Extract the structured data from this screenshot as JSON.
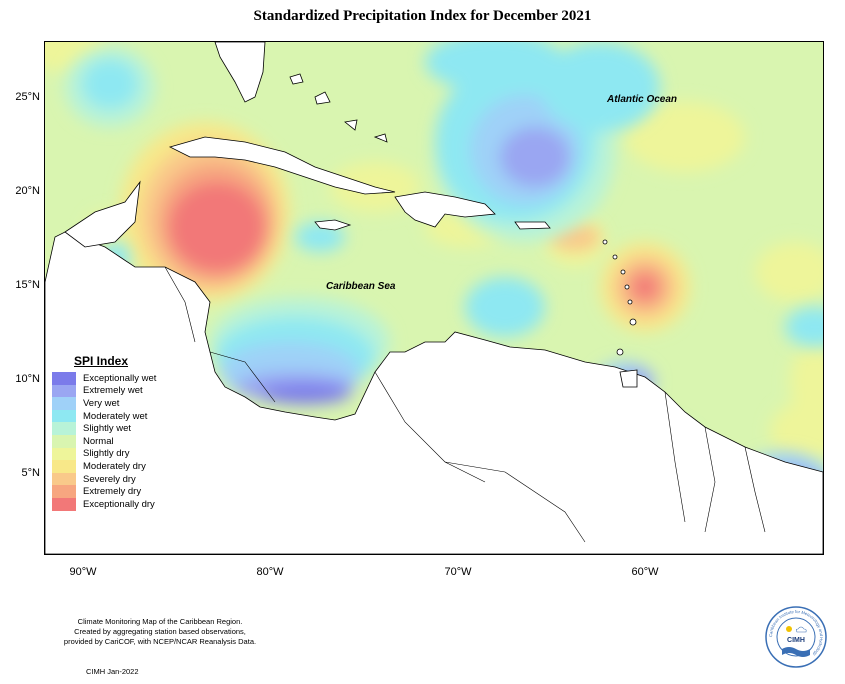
{
  "title": "Standardized Precipitation Index for December 2021",
  "y_ticks": [
    "25°N",
    "20°N",
    "15°N",
    "10°N",
    "5°N"
  ],
  "x_ticks": [
    "90°W",
    "80°W",
    "70°W",
    "60°W"
  ],
  "labels": {
    "atlantic": "Atlantic Ocean",
    "caribbean": "Caribbean Sea"
  },
  "legend": {
    "title": "SPI Index",
    "items": [
      {
        "label": "Exceptionally wet",
        "color": "#7b7bea"
      },
      {
        "label": "Extremely wet",
        "color": "#9aa6f2"
      },
      {
        "label": "Very wet",
        "color": "#9fd1f8"
      },
      {
        "label": "Moderately wet",
        "color": "#8ee8f2"
      },
      {
        "label": "Slightly wet",
        "color": "#b8f3d8"
      },
      {
        "label": "Normal",
        "color": "#d9f5b0"
      },
      {
        "label": "Slightly dry",
        "color": "#eef59a"
      },
      {
        "label": "Moderately dry",
        "color": "#f8e889"
      },
      {
        "label": "Severely dry",
        "color": "#f9c98a"
      },
      {
        "label": "Extremely dry",
        "color": "#f7a680"
      },
      {
        "label": "Exceptionally dry",
        "color": "#f27878"
      }
    ]
  },
  "credit": {
    "line1": "Climate Monitoring Map of the Caribbean Region.",
    "line2": "Created by aggregating station based observations,",
    "line3": "provided by CariCOF, with NCEP/NCAR Reanalysis Data.",
    "date": "CIMH Jan-2022"
  },
  "logo": {
    "text": "CIMH",
    "ring_text": "Caribbean Institute for Meteorology and Hydrology"
  }
}
